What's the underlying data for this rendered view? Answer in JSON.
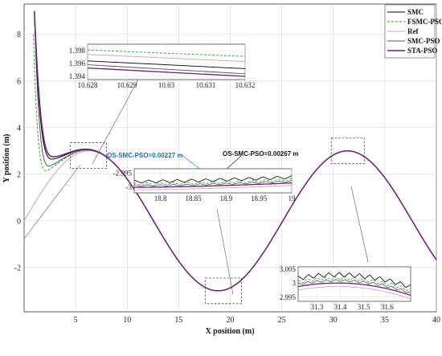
{
  "chart_data": {
    "type": "line",
    "xlabel": "X position (m)",
    "ylabel": "Y position (m)",
    "xlim": [
      0,
      40
    ],
    "ylim": [
      -3.9,
      9.3
    ],
    "xticks": [
      "5",
      "10",
      "15",
      "20",
      "25",
      "30",
      "35",
      "40"
    ],
    "yticks": [
      "-2",
      "0",
      "2",
      "4",
      "6",
      "8"
    ],
    "legend_position": "top-right",
    "series": [
      {
        "name": "SMC",
        "color": "#000000",
        "style": "solid",
        "start": [
          1.0,
          8.8
        ],
        "dip": [
          2.8,
          2.65
        ]
      },
      {
        "name": "FSMC-PSO",
        "color": "#22aa22",
        "style": "dashed",
        "start": [
          0.9,
          8.0
        ],
        "dip": [
          2.2,
          2.15
        ]
      },
      {
        "name": "Ref",
        "color": "#c9a0bc",
        "style": "solid",
        "start": [
          0.0,
          0.0
        ],
        "dip": null
      },
      {
        "name": "SMC-PSO",
        "color": "#555555",
        "style": "solid",
        "start": [
          1.0,
          8.9
        ],
        "dip": [
          2.5,
          2.35
        ]
      },
      {
        "name": "STA-PSO",
        "color": "#6d1f7a",
        "style": "solid",
        "start": [
          1.0,
          9.0
        ],
        "dip": [
          2.9,
          2.75
        ]
      }
    ],
    "reference": {
      "amplitude": 3.0,
      "period": 25.1,
      "x_range": [
        0,
        40
      ]
    },
    "insets": [
      {
        "name": "inset-top",
        "xlim": [
          10.628,
          10.632
        ],
        "ylim": [
          1.3935,
          1.399
        ],
        "xticks": [
          "10.628",
          "10.629",
          "10.63",
          "10.631",
          "10.632"
        ],
        "yticks": [
          "1.394",
          "1.396",
          "1.398"
        ],
        "lines": [
          {
            "series": "FSMC-PSO",
            "y0": 1.3981,
            "y1": 1.3971
          },
          {
            "series": "Ref",
            "y0": 1.3974,
            "y1": 1.3963
          },
          {
            "series": "SMC",
            "y0": 1.3964,
            "y1": 1.3952
          },
          {
            "series": "SMC-PSO",
            "y0": 1.3958,
            "y1": 1.3944
          },
          {
            "series": "STA-PSO",
            "y0": 1.3953,
            "y1": 1.394
          }
        ]
      },
      {
        "name": "inset-mid",
        "xlim": [
          18.76,
          19.0
        ],
        "ylim": [
          -3.002,
          -2.9935
        ],
        "xticks": [
          "18.8",
          "18.85",
          "18.9",
          "18.95",
          "19"
        ],
        "yticks": [
          "-2.995",
          "-3"
        ]
      },
      {
        "name": "inset-bottom",
        "xlim": [
          31.22,
          31.7
        ],
        "ylim": [
          2.9935,
          3.0058
        ],
        "xticks": [
          "31.3",
          "31.4",
          "31.5",
          "31.6"
        ],
        "yticks": [
          "3.005",
          "3",
          "2.995"
        ]
      }
    ],
    "annotations": [
      {
        "text": "OS-SMC-PSO=0.00227 m",
        "color": "#1a6fb0"
      },
      {
        "text": "OS-SMC-PSO=0.00267 m",
        "color": "#111111"
      }
    ]
  }
}
